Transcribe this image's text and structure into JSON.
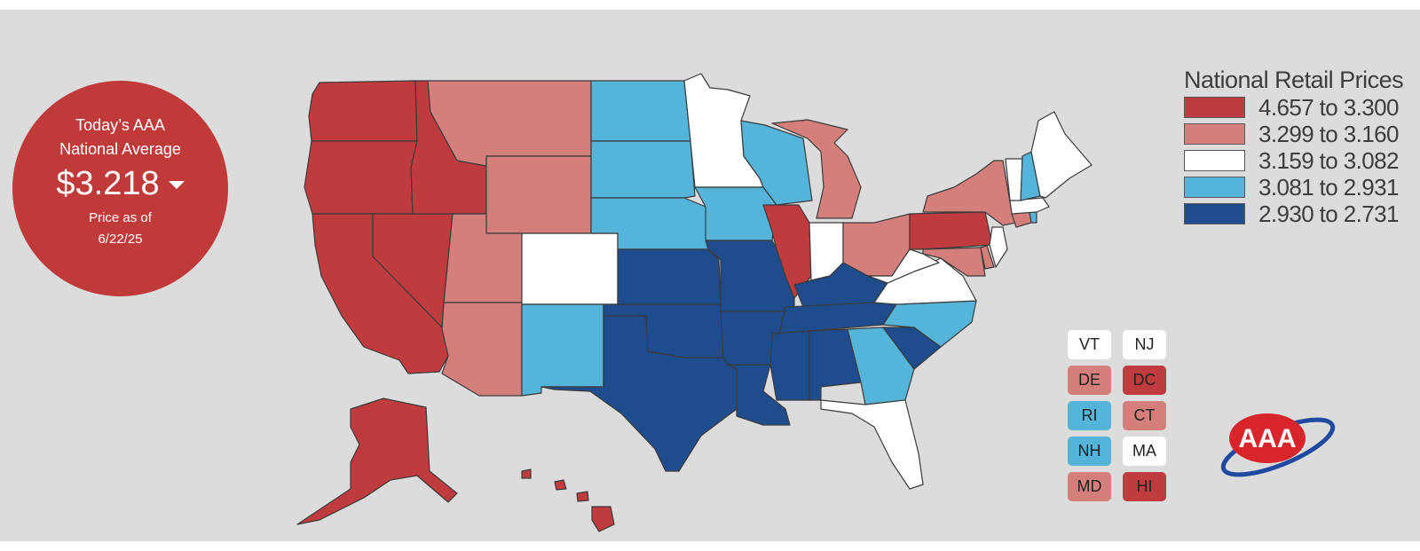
{
  "badge": {
    "line1": "Today’s AAA",
    "line2": "National Average",
    "price": "$3.218",
    "trend_icon": "caret-down-icon",
    "asof_line1": "Price as of",
    "asof_line2": "6/22/25"
  },
  "legend": {
    "title": "National Retail Prices",
    "items": [
      {
        "range": "4.657 to 3.300",
        "color": "#bf3b3d"
      },
      {
        "range": "3.299 to 3.160",
        "color": "#d47f7c"
      },
      {
        "range": "3.159 to 3.082",
        "color": "#ffffff"
      },
      {
        "range": "3.081 to 2.931",
        "color": "#54b4da"
      },
      {
        "range": "2.930 to 2.731",
        "color": "#1e4c8c"
      }
    ]
  },
  "map": {
    "state_tiers": {
      "WA": 0,
      "OR": 0,
      "ID": 0,
      "CA": 0,
      "NV": 0,
      "IL": 0,
      "PA": 0,
      "AK": 0,
      "HI": 0,
      "DC": 0,
      "MT": 1,
      "WY": 1,
      "UT": 1,
      "AZ": 1,
      "MI": 1,
      "OH": 1,
      "NY": 1,
      "DE": 1,
      "CT": 1,
      "MD": 1,
      "MN": 2,
      "CO": 2,
      "IN": 2,
      "WV": 2,
      "VA": 2,
      "FL": 2,
      "ME": 2,
      "VT": 2,
      "MA": 2,
      "NJ": 2,
      "ND": 3,
      "SD": 3,
      "NE": 3,
      "IA": 3,
      "WI": 3,
      "NM": 3,
      "GA": 3,
      "NC": 3,
      "NH": 3,
      "RI": 3,
      "KS": 4,
      "MO": 4,
      "OK": 4,
      "TX": 4,
      "AR": 4,
      "LA": 4,
      "MS": 4,
      "AL": 4,
      "TN": 4,
      "KY": 4,
      "SC": 4
    }
  },
  "small_states": [
    {
      "code": "VT",
      "tier": 2
    },
    {
      "code": "NJ",
      "tier": 2
    },
    {
      "code": "DE",
      "tier": 1
    },
    {
      "code": "DC",
      "tier": 0
    },
    {
      "code": "RI",
      "tier": 3
    },
    {
      "code": "CT",
      "tier": 1
    },
    {
      "code": "NH",
      "tier": 3
    },
    {
      "code": "MA",
      "tier": 2
    },
    {
      "code": "MD",
      "tier": 1
    },
    {
      "code": "HI",
      "tier": 0
    }
  ],
  "logo": {
    "text": "AAA",
    "icon": "aaa-logo-icon"
  }
}
